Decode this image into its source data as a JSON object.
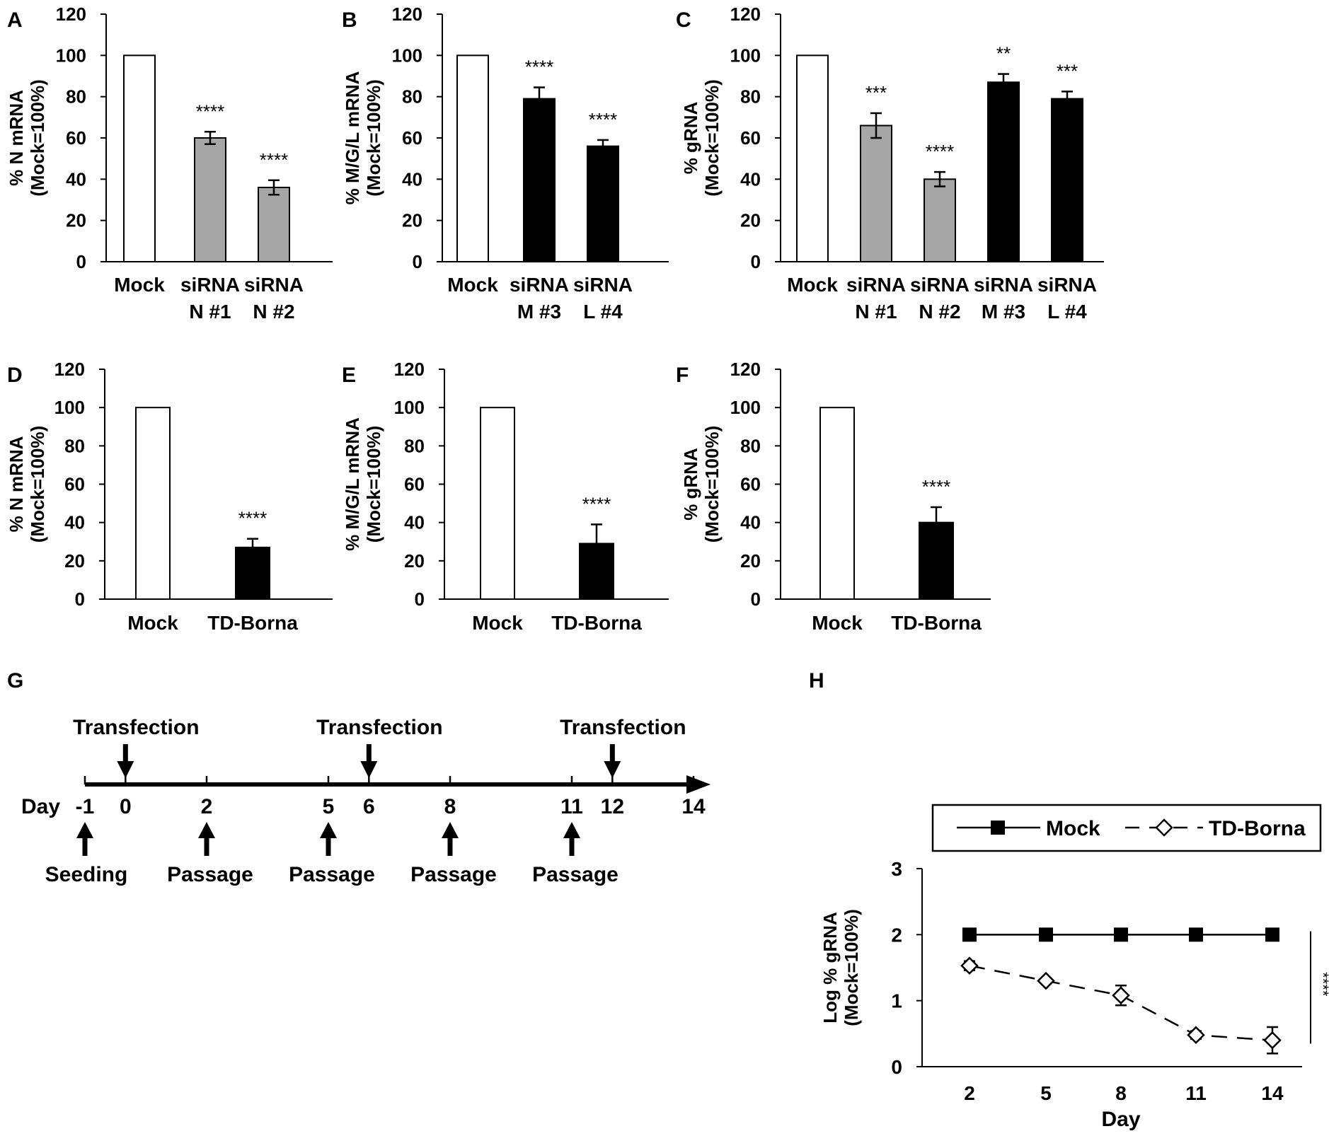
{
  "figure_title": "",
  "colors": {
    "white_bar": "#ffffff",
    "gray_bar": "#a6a6a6",
    "black_bar": "#000000",
    "axis": "#000000"
  },
  "chart_data": [
    {
      "panel": "A",
      "type": "bar",
      "ylabel_line1": "% N mRNA",
      "ylabel_line2": "(Mock=100%)",
      "ylim": [
        0,
        120
      ],
      "yticks": [
        0,
        20,
        40,
        60,
        80,
        100,
        120
      ],
      "categories": [
        [
          "Mock"
        ],
        [
          "siRNA",
          "N #1"
        ],
        [
          "siRNA",
          "N #2"
        ]
      ],
      "values": [
        100,
        60,
        36
      ],
      "errors": [
        0,
        3,
        3.5
      ],
      "fills": [
        "white",
        "gray",
        "gray"
      ],
      "significance": [
        "",
        "****",
        "****"
      ]
    },
    {
      "panel": "B",
      "type": "bar",
      "ylabel_line1": "% M/G/L mRNA",
      "ylabel_line2": "(Mock=100%)",
      "ylim": [
        0,
        120
      ],
      "yticks": [
        0,
        20,
        40,
        60,
        80,
        100,
        120
      ],
      "categories": [
        [
          "Mock"
        ],
        [
          "siRNA",
          "M #3"
        ],
        [
          "siRNA",
          "L #4"
        ]
      ],
      "values": [
        100,
        79,
        56
      ],
      "errors": [
        0,
        5.5,
        3
      ],
      "fills": [
        "white",
        "black",
        "black"
      ],
      "significance": [
        "",
        "****",
        "****"
      ]
    },
    {
      "panel": "C",
      "type": "bar",
      "ylabel_line1": "% gRNA",
      "ylabel_line2": "(Mock=100%)",
      "ylim": [
        0,
        120
      ],
      "yticks": [
        0,
        20,
        40,
        60,
        80,
        100,
        120
      ],
      "categories": [
        [
          "Mock"
        ],
        [
          "siRNA",
          "N #1"
        ],
        [
          "siRNA",
          "N #2"
        ],
        [
          "siRNA",
          "M #3"
        ],
        [
          "siRNA",
          "L #4"
        ]
      ],
      "values": [
        100,
        66,
        40,
        87,
        79
      ],
      "errors": [
        0,
        6,
        3.5,
        4,
        3.5
      ],
      "fills": [
        "white",
        "gray",
        "gray",
        "black",
        "black"
      ],
      "significance": [
        "",
        "***",
        "****",
        "**",
        "***"
      ]
    },
    {
      "panel": "D",
      "type": "bar",
      "ylabel_line1": "% N mRNA",
      "ylabel_line2": "(Mock=100%)",
      "ylim": [
        0,
        120
      ],
      "yticks": [
        0,
        20,
        40,
        60,
        80,
        100,
        120
      ],
      "categories": [
        [
          "Mock"
        ],
        [
          "TD-Borna"
        ]
      ],
      "values": [
        100,
        27
      ],
      "errors": [
        0,
        4.5
      ],
      "fills": [
        "white",
        "black"
      ],
      "significance": [
        "",
        "****"
      ]
    },
    {
      "panel": "E",
      "type": "bar",
      "ylabel_line1": "% M/G/L mRNA",
      "ylabel_line2": "(Mock=100%)",
      "ylim": [
        0,
        120
      ],
      "yticks": [
        0,
        20,
        40,
        60,
        80,
        100,
        120
      ],
      "categories": [
        [
          "Mock"
        ],
        [
          "TD-Borna"
        ]
      ],
      "values": [
        100,
        29
      ],
      "errors": [
        0,
        10
      ],
      "fills": [
        "white",
        "black"
      ],
      "significance": [
        "",
        "****"
      ]
    },
    {
      "panel": "F",
      "type": "bar",
      "ylabel_line1": "% gRNA",
      "ylabel_line2": "(Mock=100%)",
      "ylim": [
        0,
        120
      ],
      "yticks": [
        0,
        20,
        40,
        60,
        80,
        100,
        120
      ],
      "categories": [
        [
          "Mock"
        ],
        [
          "TD-Borna"
        ]
      ],
      "values": [
        100,
        40
      ],
      "errors": [
        0,
        8
      ],
      "fills": [
        "white",
        "black"
      ],
      "significance": [
        "",
        "****"
      ]
    },
    {
      "panel": "G",
      "type": "timeline",
      "axis_label": "Day",
      "day_ticks": [
        -1,
        0,
        2,
        5,
        6,
        8,
        11,
        12,
        14
      ],
      "day_range": [
        -1,
        14
      ],
      "events_above": [
        {
          "day": 0,
          "label": "Transfection"
        },
        {
          "day": 6,
          "label": "Transfection"
        },
        {
          "day": 12,
          "label": "Transfection"
        }
      ],
      "events_below": [
        {
          "day": -1,
          "label": "Seeding"
        },
        {
          "day": 2,
          "label": "Passage"
        },
        {
          "day": 5,
          "label": "Passage"
        },
        {
          "day": 8,
          "label": "Passage"
        },
        {
          "day": 11,
          "label": "Passage"
        }
      ]
    },
    {
      "panel": "H",
      "type": "line",
      "ylabel_line1": "Log % gRNA",
      "ylabel_line2": "(Mock=100%)",
      "xlabel": "Day",
      "x": [
        2,
        5,
        8,
        11,
        14
      ],
      "ylim": [
        0,
        3
      ],
      "yticks": [
        0,
        1,
        2,
        3
      ],
      "series": [
        {
          "name": "Mock",
          "values": [
            2.0,
            2.0,
            2.0,
            2.0,
            2.0
          ],
          "errors": [
            0,
            0,
            0,
            0,
            0
          ],
          "marker": "filled-square",
          "line": "solid"
        },
        {
          "name": "TD-Borna",
          "values": [
            1.53,
            1.3,
            1.08,
            0.48,
            0.4
          ],
          "errors": [
            0.07,
            0.04,
            0.15,
            0.06,
            0.2
          ],
          "marker": "open-diamond",
          "line": "dashed"
        }
      ],
      "legend": "top",
      "significance": "****"
    }
  ]
}
